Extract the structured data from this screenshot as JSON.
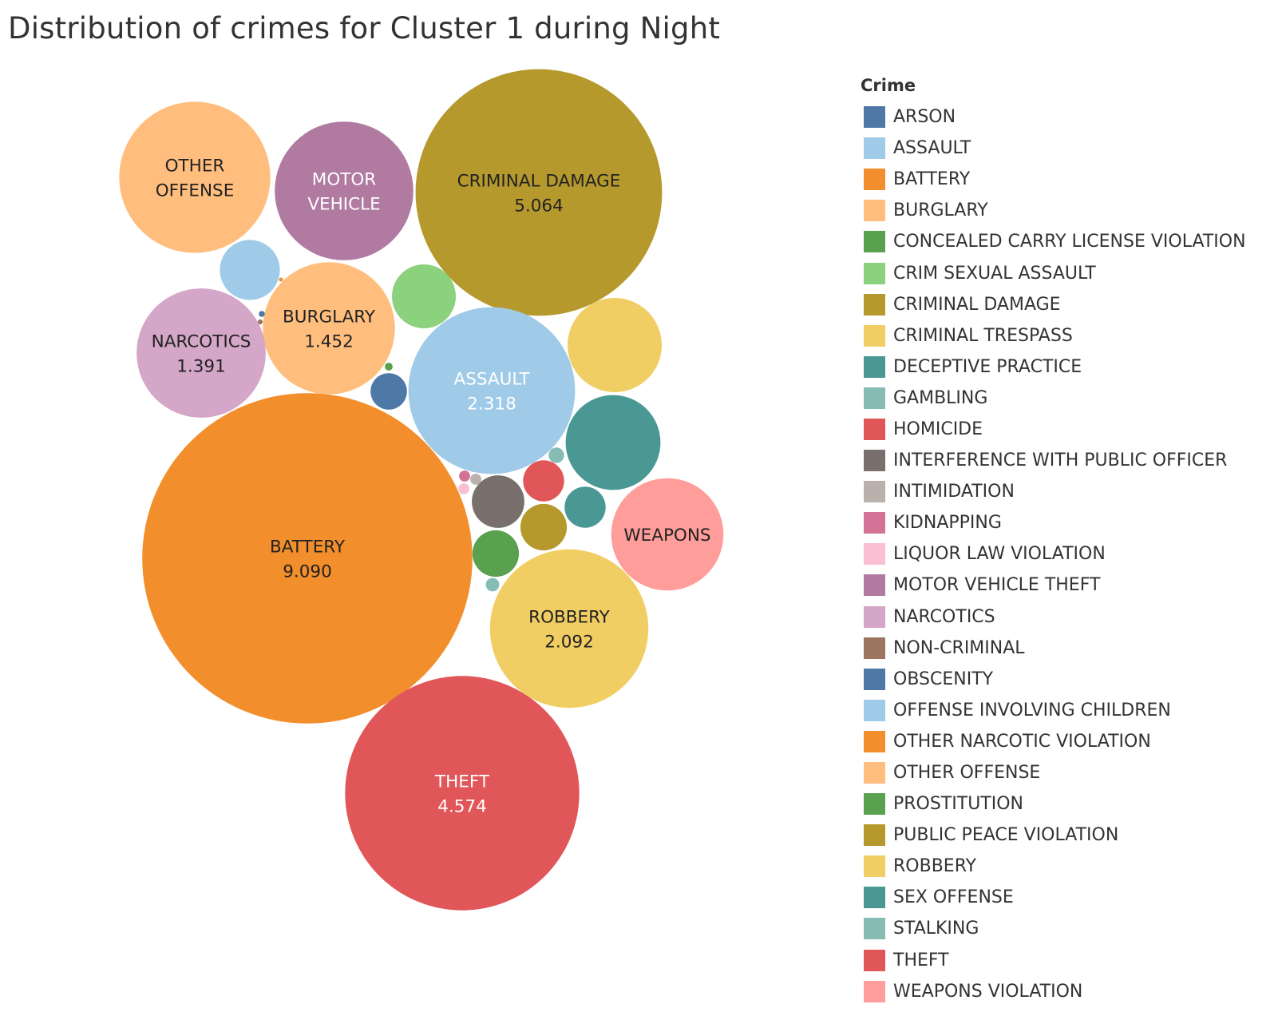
{
  "title": "Distribution of crimes for Cluster 1 during Night",
  "chart_data": {
    "type": "bubble",
    "title": "Distribution of crimes for Cluster 1 during Night",
    "legend": {
      "title": "Crime",
      "position": "right",
      "entries": [
        {
          "name": "ARSON",
          "color": "#4e79a7"
        },
        {
          "name": "ASSAULT",
          "color": "#a0cbe8"
        },
        {
          "name": "BATTERY",
          "color": "#f28e2b"
        },
        {
          "name": "BURGLARY",
          "color": "#ffbe7d"
        },
        {
          "name": "CONCEALED CARRY LICENSE VIOLATION",
          "color": "#59a14f"
        },
        {
          "name": "CRIM SEXUAL ASSAULT",
          "color": "#8cd17d"
        },
        {
          "name": "CRIMINAL DAMAGE",
          "color": "#b6992d"
        },
        {
          "name": "CRIMINAL TRESPASS",
          "color": "#f1ce63"
        },
        {
          "name": "DECEPTIVE PRACTICE",
          "color": "#499894"
        },
        {
          "name": "GAMBLING",
          "color": "#86bcb6"
        },
        {
          "name": "HOMICIDE",
          "color": "#e15759"
        },
        {
          "name": "INTERFERENCE WITH PUBLIC OFFICER",
          "color": "#79706e"
        },
        {
          "name": "INTIMIDATION",
          "color": "#bab0ac"
        },
        {
          "name": "KIDNAPPING",
          "color": "#d37295"
        },
        {
          "name": "LIQUOR LAW VIOLATION",
          "color": "#fabfd2"
        },
        {
          "name": "MOTOR VEHICLE THEFT",
          "color": "#b07aa1"
        },
        {
          "name": "NARCOTICS",
          "color": "#d4a6c8"
        },
        {
          "name": "NON-CRIMINAL",
          "color": "#9d7660"
        },
        {
          "name": "OBSCENITY",
          "color": "#4e79a7"
        },
        {
          "name": "OFFENSE INVOLVING CHILDREN",
          "color": "#a0cbe8"
        },
        {
          "name": "OTHER NARCOTIC VIOLATION",
          "color": "#f28e2b"
        },
        {
          "name": "OTHER OFFENSE",
          "color": "#ffbe7d"
        },
        {
          "name": "PROSTITUTION",
          "color": "#59a14f"
        },
        {
          "name": "PUBLIC PEACE VIOLATION",
          "color": "#b6992d"
        },
        {
          "name": "ROBBERY",
          "color": "#f1ce63"
        },
        {
          "name": "SEX OFFENSE",
          "color": "#499894"
        },
        {
          "name": "STALKING",
          "color": "#86bcb6"
        },
        {
          "name": "THEFT",
          "color": "#e15759"
        },
        {
          "name": "WEAPONS VIOLATION",
          "color": "#ff9d9a"
        }
      ]
    },
    "series": [
      {
        "name": "BATTERY",
        "value": 9.09,
        "label": [
          "BATTERY",
          "9.090"
        ]
      },
      {
        "name": "CRIMINAL DAMAGE",
        "value": 5.064,
        "label": [
          "CRIMINAL DAMAGE",
          "5.064"
        ]
      },
      {
        "name": "THEFT",
        "value": 4.574,
        "label": [
          "THEFT",
          "4.574"
        ]
      },
      {
        "name": "ASSAULT",
        "value": 2.318,
        "label": [
          "ASSAULT",
          "2.318"
        ]
      },
      {
        "name": "ROBBERY",
        "value": 2.092,
        "label": [
          "ROBBERY",
          "2.092"
        ]
      },
      {
        "name": "BURGLARY",
        "value": 1.452,
        "label": [
          "BURGLARY",
          "1.452"
        ]
      },
      {
        "name": "NARCOTICS",
        "value": 1.391,
        "label": [
          "NARCOTICS",
          "1.391"
        ]
      },
      {
        "name": "OTHER OFFENSE",
        "value": 1.9,
        "label": [
          "OTHER",
          "OFFENSE"
        ]
      },
      {
        "name": "MOTOR VEHICLE THEFT",
        "value": 1.6,
        "label": [
          "MOTOR",
          "VEHICLE"
        ]
      },
      {
        "name": "WEAPONS VIOLATION",
        "value": 1.05,
        "label": [
          "WEAPONS"
        ]
      },
      {
        "name": "CRIMINAL TRESPASS",
        "value": 0.74,
        "label": []
      },
      {
        "name": "DECEPTIVE PRACTICE",
        "value": 0.75,
        "label": []
      },
      {
        "name": "OFFENSE INVOLVING CHILDREN",
        "value": 0.3,
        "label": []
      },
      {
        "name": "CRIM SEXUAL ASSAULT",
        "value": 0.34,
        "label": []
      },
      {
        "name": "INTERFERENCE WITH PUBLIC OFFICER",
        "value": 0.23,
        "label": []
      },
      {
        "name": "HOMICIDE",
        "value": 0.14,
        "label": []
      },
      {
        "name": "PUBLIC PEACE VIOLATION",
        "value": 0.18,
        "label": []
      },
      {
        "name": "PROSTITUTION",
        "value": 0.18,
        "label": []
      },
      {
        "name": "SEX OFFENSE",
        "value": 0.14,
        "label": []
      },
      {
        "name": "ARSON",
        "value": 0.11,
        "label": []
      },
      {
        "name": "STALKING",
        "value": 0.02,
        "label": []
      },
      {
        "name": "GAMBLING",
        "value": 0.015,
        "label": []
      },
      {
        "name": "KIDNAPPING",
        "value": 0.01,
        "label": []
      },
      {
        "name": "INTIMIDATION",
        "value": 0.01,
        "label": []
      },
      {
        "name": "LIQUOR LAW VIOLATION",
        "value": 0.01,
        "label": []
      },
      {
        "name": "CONCEALED CARRY LICENSE VIOLATION",
        "value": 0.005,
        "label": []
      },
      {
        "name": "OBSCENITY",
        "value": 0.003,
        "label": []
      },
      {
        "name": "NON-CRIMINAL",
        "value": 0.002,
        "label": []
      },
      {
        "name": "OTHER NARCOTIC VIOLATION",
        "value": 0.001,
        "label": []
      }
    ]
  }
}
